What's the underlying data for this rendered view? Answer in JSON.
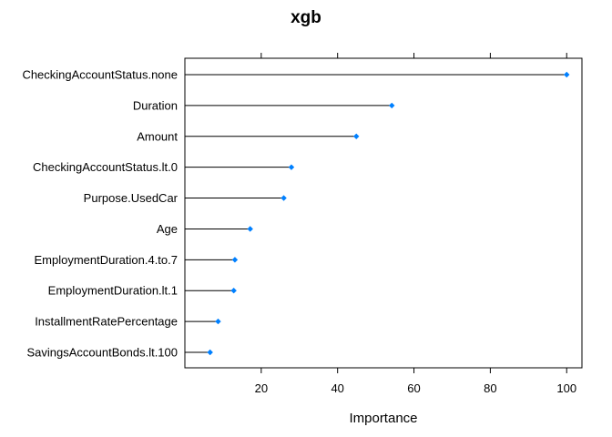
{
  "chart_data": {
    "type": "dotplot",
    "title": "xgb",
    "xlabel": "Importance",
    "ylabel": "",
    "xlim": [
      0,
      104
    ],
    "xticks": [
      "20",
      "40",
      "60",
      "80",
      "100"
    ],
    "xtick_values": [
      20,
      40,
      60,
      80,
      100
    ],
    "categories": [
      "CheckingAccountStatus.none",
      "Duration",
      "Amount",
      "CheckingAccountStatus.lt.0",
      "Purpose.UsedCar",
      "Age",
      "EmploymentDuration.4.to.7",
      "EmploymentDuration.lt.1",
      "InstallmentRatePercentage",
      "SavingsAccountBonds.lt.100"
    ],
    "values": [
      100,
      54.2,
      44.9,
      27.9,
      25.9,
      17.1,
      13.1,
      12.8,
      8.7,
      6.6
    ],
    "grid": false,
    "point_color": "#0080ff",
    "line_color": "#000000"
  }
}
